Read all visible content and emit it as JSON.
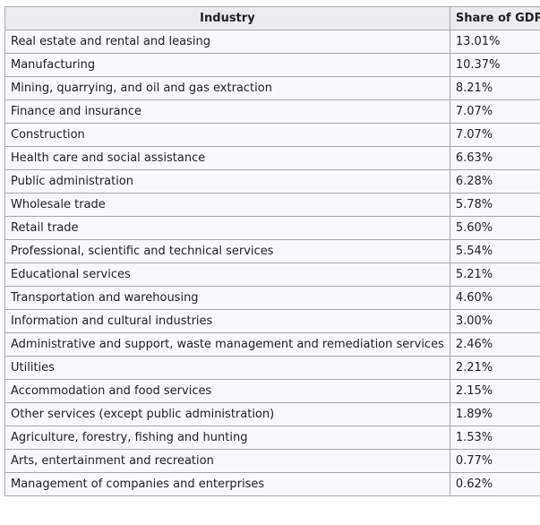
{
  "table": {
    "headers": [
      "Industry",
      "Share of GDP"
    ],
    "rows": [
      [
        "Real estate and rental and leasing",
        "13.01%"
      ],
      [
        "Manufacturing",
        "10.37%"
      ],
      [
        "Mining, quarrying, and oil and gas extraction",
        "8.21%"
      ],
      [
        "Finance and insurance",
        "7.07%"
      ],
      [
        "Construction",
        "7.07%"
      ],
      [
        "Health care and social assistance",
        "6.63%"
      ],
      [
        "Public administration",
        "6.28%"
      ],
      [
        "Wholesale trade",
        "5.78%"
      ],
      [
        "Retail trade",
        "5.60%"
      ],
      [
        "Professional, scientific and technical services",
        "5.54%"
      ],
      [
        "Educational services",
        "5.21%"
      ],
      [
        "Transportation and warehousing",
        "4.60%"
      ],
      [
        "Information and cultural industries",
        "3.00%"
      ],
      [
        "Administrative and support, waste management and remediation services",
        "2.46%"
      ],
      [
        "Utilities",
        "2.21%"
      ],
      [
        "Accommodation and food services",
        "2.15%"
      ],
      [
        "Other services (except public administration)",
        "1.89%"
      ],
      [
        "Agriculture, forestry, fishing and hunting",
        "1.53%"
      ],
      [
        "Arts, entertainment and recreation",
        "0.77%"
      ],
      [
        "Management of companies and enterprises",
        "0.62%"
      ]
    ]
  },
  "colors": {
    "header_bg": "#eaecf0",
    "cell_bg": "#f8f9fa",
    "border": "#a2a9b1",
    "text": "#202122"
  }
}
